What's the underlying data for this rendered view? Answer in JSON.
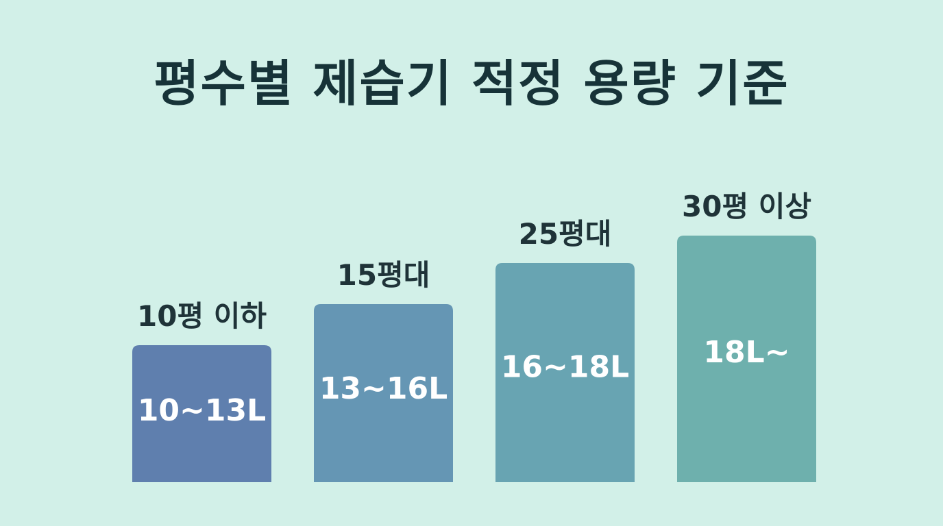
{
  "chart_data": {
    "type": "bar",
    "title": "평수별 제습기 적정 용량 기준",
    "categories": [
      "10평 이하",
      "15평대",
      "25평대",
      "30평 이상"
    ],
    "value_labels": [
      "10~13L",
      "13~16L",
      "16~18L",
      "18L~"
    ],
    "values": [
      10,
      13,
      16,
      18
    ],
    "ylim": [
      0,
      24
    ],
    "grid": false,
    "legend": "none",
    "colors": [
      "#5f7fae",
      "#6596b4",
      "#68a4b2",
      "#6eb0ad"
    ]
  }
}
